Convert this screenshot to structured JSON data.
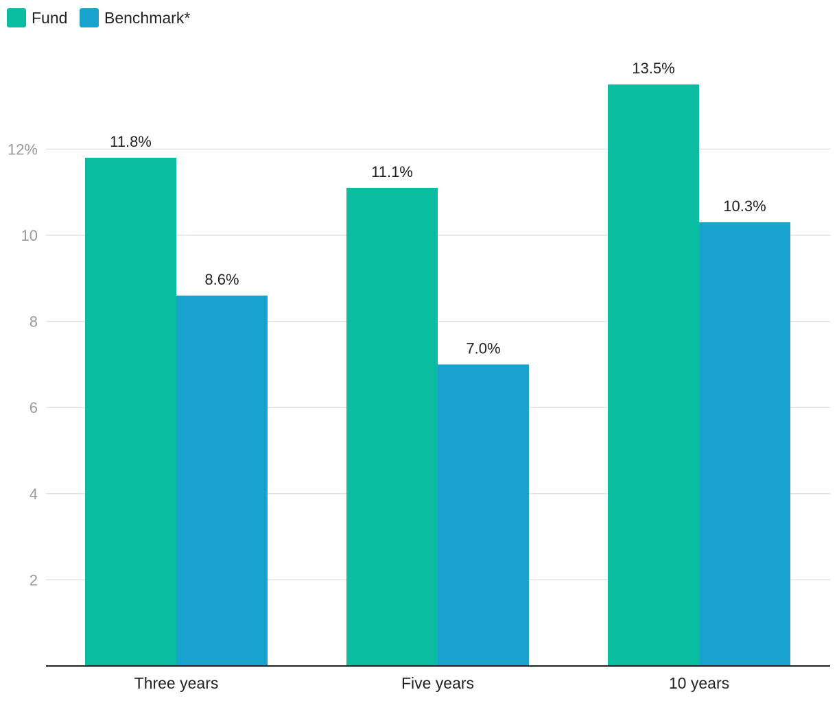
{
  "chart_data": {
    "type": "bar",
    "categories": [
      "Three years",
      "Five years",
      "10 years"
    ],
    "series": [
      {
        "name": "Fund",
        "values": [
          11.8,
          11.1,
          13.5
        ],
        "labels": [
          "11.8%",
          "11.1%",
          "13.5%"
        ],
        "color": "#0bbda0"
      },
      {
        "name": "Benchmark*",
        "values": [
          8.6,
          7.0,
          10.3
        ],
        "labels": [
          "8.6%",
          "7.0%",
          "10.3%"
        ],
        "color": "#1aa2cf"
      }
    ],
    "yticks": [
      {
        "value": 2,
        "label": "2"
      },
      {
        "value": 4,
        "label": "4"
      },
      {
        "value": 6,
        "label": "6"
      },
      {
        "value": 8,
        "label": "8"
      },
      {
        "value": 10,
        "label": "10"
      },
      {
        "value": 12,
        "label": "12%"
      }
    ],
    "ylim": [
      0,
      14.4
    ],
    "grid": true,
    "legend": "top-left",
    "colors": {
      "gridline": "#e3e3e3",
      "axis": "#222222",
      "tick_text": "#9a9a9a"
    }
  }
}
